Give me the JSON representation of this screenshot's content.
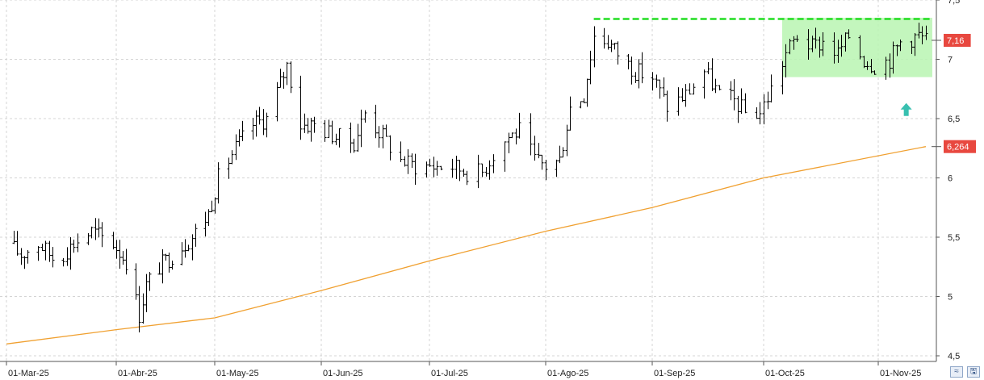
{
  "chart_data": {
    "type": "ohlc",
    "x_tick_labels": [
      "01-Mar-25",
      "01-Abr-25",
      "01-May-25",
      "01-Jun-25",
      "01-Jul-25",
      "01-Ago-25",
      "01-Sep-25",
      "01-Oct-25",
      "01-Nov-25"
    ],
    "y_tick_labels": [
      "4,5",
      "5",
      "5,5",
      "6",
      "6,5",
      "7",
      "7,5"
    ],
    "y_ticks": [
      4.5,
      5,
      5.5,
      6,
      6.5,
      7,
      7.5
    ],
    "ylim": [
      4.45,
      7.5
    ],
    "grid": true,
    "price_series": {
      "name": "",
      "color": "#000000",
      "anchors": [
        [
          "01-Mar-25",
          5.45
        ],
        [
          "05-Mar-25",
          5.35
        ],
        [
          "10-Mar-25",
          5.45
        ],
        [
          "15-Mar-25",
          5.3
        ],
        [
          "20-Mar-25",
          5.45
        ],
        [
          "25-Mar-25",
          5.55
        ],
        [
          "31-Mar-25",
          5.45
        ],
        [
          "04-Abr-25",
          5.3
        ],
        [
          "08-Abr-25",
          4.85
        ],
        [
          "10-Abr-25",
          5.1
        ],
        [
          "14-Abr-25",
          5.25
        ],
        [
          "18-Abr-25",
          5.35
        ],
        [
          "24-Abr-25",
          5.5
        ],
        [
          "29-Abr-25",
          5.7
        ],
        [
          "02-May-25",
          6.0
        ],
        [
          "07-May-25",
          6.25
        ],
        [
          "12-May-25",
          6.45
        ],
        [
          "16-May-25",
          6.5
        ],
        [
          "20-May-25",
          6.8
        ],
        [
          "22-May-25",
          6.95
        ],
        [
          "26-May-25",
          6.45
        ],
        [
          "30-May-25",
          6.45
        ],
        [
          "05-Jun-25",
          6.35
        ],
        [
          "10-Jun-25",
          6.3
        ],
        [
          "13-Jun-25",
          6.55
        ],
        [
          "18-Jun-25",
          6.35
        ],
        [
          "23-Jun-25",
          6.15
        ],
        [
          "27-Jun-25",
          6.1
        ],
        [
          "02-Jul-25",
          6.1
        ],
        [
          "07-Jul-25",
          6.1
        ],
        [
          "11-Jul-25",
          6.05
        ],
        [
          "15-Jul-25",
          6.05
        ],
        [
          "18-Jul-25",
          6.2
        ],
        [
          "22-Jul-25",
          6.35
        ],
        [
          "25-Jul-25",
          6.4
        ],
        [
          "29-Jul-25",
          6.15
        ],
        [
          "01-Ago-25",
          6.1
        ],
        [
          "05-Ago-25",
          6.15
        ],
        [
          "08-Ago-25",
          6.6
        ],
        [
          "12-Ago-25",
          6.7
        ],
        [
          "15-Ago-25",
          7.2
        ],
        [
          "19-Ago-25",
          7.15
        ],
        [
          "22-Ago-25",
          7.05
        ],
        [
          "27-Ago-25",
          6.9
        ],
        [
          "01-Sep-25",
          6.85
        ],
        [
          "05-Sep-25",
          6.6
        ],
        [
          "10-Sep-25",
          6.7
        ],
        [
          "15-Sep-25",
          6.9
        ],
        [
          "19-Sep-25",
          6.7
        ],
        [
          "23-Sep-25",
          6.65
        ],
        [
          "26-Sep-25",
          6.55
        ],
        [
          "30-Sep-25",
          6.55
        ],
        [
          "03-Oct-25",
          6.75
        ],
        [
          "07-Oct-25",
          7.05
        ],
        [
          "10-Oct-25",
          7.2
        ],
        [
          "14-Oct-25",
          7.1
        ],
        [
          "17-Oct-25",
          7.15
        ],
        [
          "21-Oct-25",
          7.05
        ],
        [
          "24-Oct-25",
          7.2
        ],
        [
          "28-Oct-25",
          7.0
        ],
        [
          "31-Oct-25",
          6.95
        ],
        [
          "04-Nov-25",
          7.0
        ],
        [
          "07-Nov-25",
          7.15
        ],
        [
          "12-Nov-25",
          7.2
        ],
        [
          "14-Nov-25",
          7.16
        ]
      ],
      "last_value_label": "7,16",
      "label_color": "#e8483f"
    },
    "moving_average": {
      "name": "",
      "color": "#f0a030",
      "points": [
        [
          "01-Mar-25",
          4.6
        ],
        [
          "01-Abr-25",
          4.72
        ],
        [
          "01-May-25",
          4.82
        ],
        [
          "01-Jun-25",
          5.05
        ],
        [
          "01-Jul-25",
          5.3
        ],
        [
          "01-Ago-25",
          5.55
        ],
        [
          "01-Sep-25",
          5.75
        ],
        [
          "01-Oct-25",
          6.0
        ],
        [
          "14-Nov-25",
          6.264
        ]
      ],
      "last_value_label": "6,264",
      "label_color": "#e8483f"
    },
    "resistance_line": {
      "value": 7.34,
      "from": "15-Ago-25",
      "to": "14-Nov-25",
      "color": "#22dd22",
      "style": "dashed"
    },
    "consolidation_zone": {
      "low": 6.85,
      "high": 7.35,
      "from": "06-Oct-25",
      "to": "14-Nov-25",
      "color": "#b9f5b1"
    },
    "breakout_arrow": {
      "date": "06-Nov-25",
      "value": 6.57,
      "direction": "up",
      "color": "#38c0b0"
    }
  }
}
